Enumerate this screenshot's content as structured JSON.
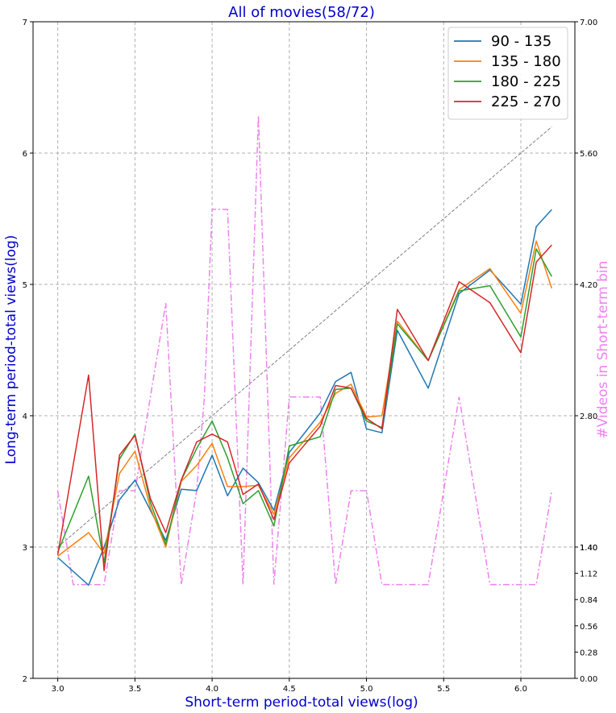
{
  "chart_data": {
    "type": "line",
    "title": "All of movies(58/72)",
    "title_color": "#0000cc",
    "xlabel": "Short-term period-total views(log)",
    "ylabel": "Long-term period-total views(log)",
    "y2label": "#Videos in Short-term bin",
    "label_color": "#0000cc",
    "y2label_color": "#ee82ee",
    "xlim": [
      2.84,
      6.35
    ],
    "ylim": [
      2,
      7
    ],
    "y2lim": [
      0,
      7
    ],
    "x_ticks": [
      "3.0",
      "3.5",
      "4.0",
      "4.5",
      "5.0",
      "5.5",
      "6.0"
    ],
    "y_ticks": [
      "2",
      "3",
      "4",
      "5",
      "6",
      "7"
    ],
    "y2_ticks": [
      "0.00",
      "0.28",
      "0.56",
      "0.84",
      "1.12",
      "1.40",
      "1.40",
      "2.80",
      "4.20",
      "5.60",
      "7.00"
    ],
    "grid": true,
    "legend_position": "top-right",
    "x": [
      3.0,
      3.2,
      3.3,
      3.4,
      3.5,
      3.6,
      3.7,
      3.8,
      3.9,
      4.0,
      4.1,
      4.2,
      4.3,
      4.4,
      4.5,
      4.7,
      4.8,
      4.9,
      5.0,
      5.1,
      5.2,
      5.4,
      5.6,
      5.8,
      6.0,
      6.1,
      6.2
    ],
    "series": [
      {
        "name": "90 - 135",
        "color": "#1f77b4",
        "values": [
          2.92,
          2.71,
          3.0,
          3.36,
          3.51,
          3.28,
          3.05,
          3.44,
          3.43,
          3.7,
          3.39,
          3.6,
          3.49,
          3.28,
          3.72,
          4.02,
          4.26,
          4.33,
          3.9,
          3.87,
          4.65,
          4.21,
          4.93,
          5.11,
          4.85,
          5.44,
          5.57
        ]
      },
      {
        "name": "135 - 180",
        "color": "#ff7f0e",
        "values": [
          2.93,
          3.11,
          2.95,
          3.56,
          3.73,
          3.3,
          3.0,
          3.5,
          3.62,
          3.79,
          3.46,
          3.46,
          3.47,
          3.25,
          3.68,
          3.95,
          4.17,
          4.24,
          3.99,
          4.0,
          4.72,
          4.42,
          4.96,
          5.12,
          4.78,
          5.33,
          4.97
        ]
      },
      {
        "name": "180 - 225",
        "color": "#2ca02c",
        "values": [
          2.96,
          3.54,
          2.88,
          3.67,
          3.86,
          3.34,
          3.02,
          3.51,
          3.75,
          3.96,
          3.68,
          3.33,
          3.43,
          3.16,
          3.77,
          3.84,
          4.2,
          4.21,
          3.96,
          3.91,
          4.7,
          4.42,
          4.95,
          4.99,
          4.6,
          5.27,
          5.06
        ]
      },
      {
        "name": "225 - 270",
        "color": "#d62728",
        "values": [
          2.94,
          4.31,
          2.82,
          3.7,
          3.85,
          3.37,
          3.11,
          3.51,
          3.8,
          3.86,
          3.8,
          3.4,
          3.48,
          3.21,
          3.64,
          3.92,
          4.23,
          4.21,
          3.98,
          3.9,
          4.81,
          4.42,
          5.02,
          4.86,
          4.48,
          5.17,
          5.3
        ]
      }
    ],
    "diagonal": {
      "x": [
        3.0,
        6.2
      ],
      "y": [
        3.0,
        6.2
      ],
      "color": "#808080"
    },
    "count_series": {
      "color": "#ee82ee",
      "x": [
        3.0,
        3.1,
        3.2,
        3.3,
        3.4,
        3.5,
        3.6,
        3.7,
        3.8,
        3.9,
        3.95,
        4.0,
        4.1,
        4.2,
        4.3,
        4.4,
        4.5,
        4.6,
        4.7,
        4.8,
        4.9,
        5.0,
        5.1,
        5.2,
        5.3,
        5.4,
        5.5,
        5.6,
        5.7,
        5.8,
        5.9,
        6.0,
        6.1,
        6.2
      ],
      "values": [
        2,
        1,
        1,
        1,
        2,
        2,
        3,
        4,
        1,
        2,
        3,
        5,
        5,
        1,
        6,
        1,
        3,
        3,
        3,
        1,
        2,
        2,
        1,
        1,
        1,
        1,
        2,
        3,
        2,
        1,
        1,
        1,
        1,
        2
      ]
    }
  }
}
